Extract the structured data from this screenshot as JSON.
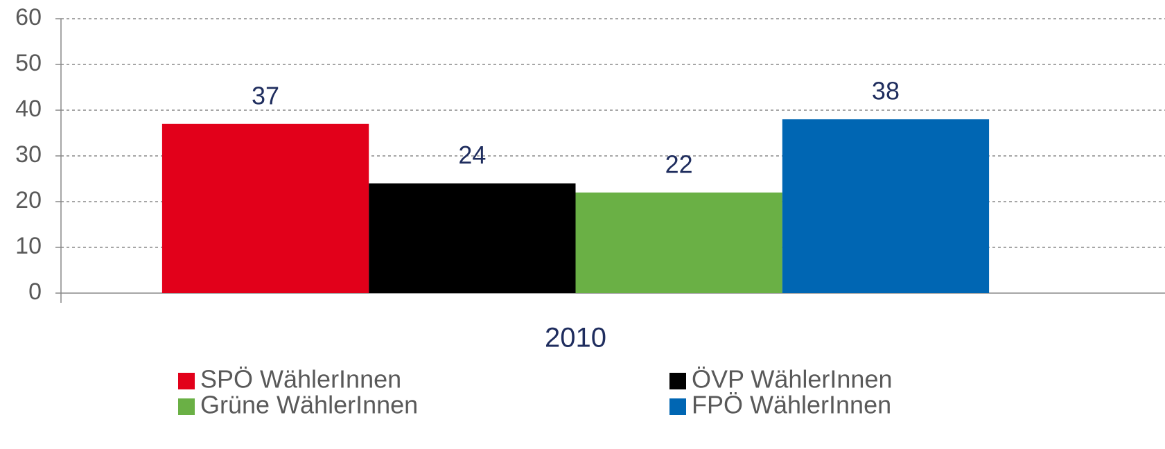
{
  "chart_data": {
    "type": "bar",
    "categories": [
      "2010"
    ],
    "series": [
      {
        "name": "SPÖ WählerInnen",
        "color": "#e2001a",
        "values": [
          37
        ]
      },
      {
        "name": "ÖVP WählerInnen",
        "color": "#000000",
        "values": [
          24
        ]
      },
      {
        "name": "Grüne WählerInnen",
        "color": "#6ab045",
        "values": [
          22
        ]
      },
      {
        "name": "FPÖ WählerInnen",
        "color": "#0066b3",
        "values": [
          38
        ]
      }
    ],
    "ylim": [
      0,
      60
    ],
    "yticks": [
      0,
      10,
      20,
      30,
      40,
      50,
      60
    ],
    "grid": true,
    "legend": "bottom"
  }
}
